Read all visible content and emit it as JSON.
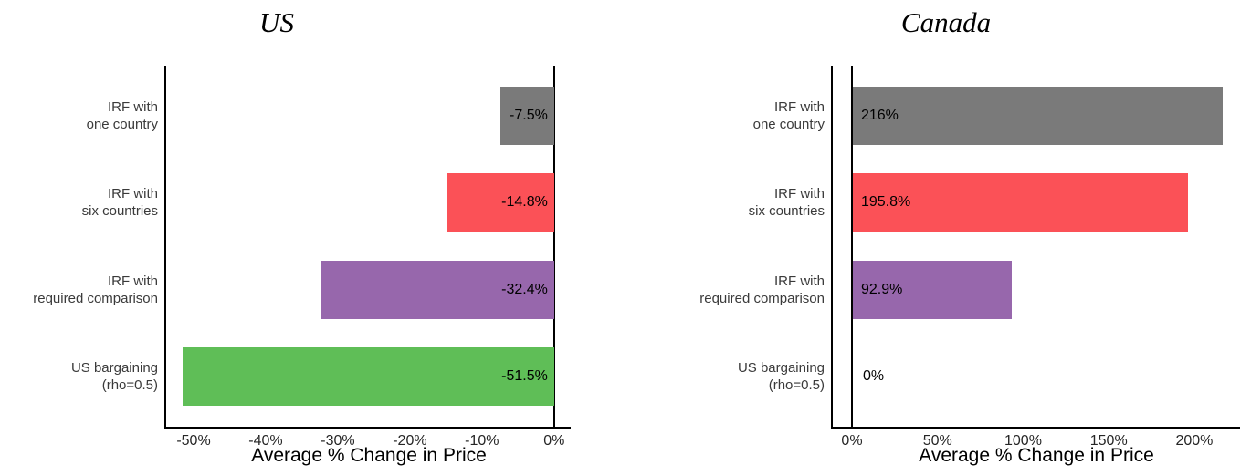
{
  "figure": {
    "background": "#ffffff",
    "axis_color": "#000000",
    "category_label_color": "#3a3a3a",
    "tick_label_color": "#262626",
    "value_label_color": "#000000"
  },
  "chart_data": [
    {
      "type": "bar",
      "orientation": "horizontal",
      "title": "US",
      "xlabel": "Average % Change in Price",
      "categories": [
        "IRF with\none country",
        "IRF with\nsix countries",
        "IRF with\nrequired comparison",
        "US bargaining\n(rho=0.5)"
      ],
      "values": [
        -7.5,
        -14.8,
        -32.4,
        -51.5
      ],
      "value_labels": [
        "-7.5%",
        "-14.8%",
        "-32.4%",
        "-51.5%"
      ],
      "bar_colors": [
        "#7a7a7a",
        "#fb5157",
        "#9767ac",
        "#5fbe57"
      ],
      "xlim": [
        -53.8,
        2.3
      ],
      "xticks": [
        -50,
        -40,
        -30,
        -20,
        -10,
        0
      ],
      "xtick_labels": [
        "-50%",
        "-40%",
        "-30%",
        "-20%",
        "-10%",
        "0%"
      ],
      "zero_reference_line": 0,
      "grid": false,
      "legend": false
    },
    {
      "type": "bar",
      "orientation": "horizontal",
      "title": "Canada",
      "xlabel": "Average % Change in Price",
      "categories": [
        "IRF with\none country",
        "IRF with\nsix countries",
        "IRF with\nrequired comparison",
        "US bargaining\n(rho=0.5)"
      ],
      "values": [
        216,
        195.8,
        92.9,
        0
      ],
      "value_labels": [
        "216%",
        "195.8%",
        "92.9%",
        "0%"
      ],
      "bar_colors": [
        "#7a7a7a",
        "#fb5157",
        "#9767ac",
        "#5fbe57"
      ],
      "xlim": [
        -11.2,
        226.7
      ],
      "xticks": [
        0,
        50,
        100,
        150,
        200
      ],
      "xtick_labels": [
        "0%",
        "50%",
        "100%",
        "150%",
        "200%"
      ],
      "zero_reference_line": 0,
      "grid": false,
      "legend": false
    }
  ]
}
